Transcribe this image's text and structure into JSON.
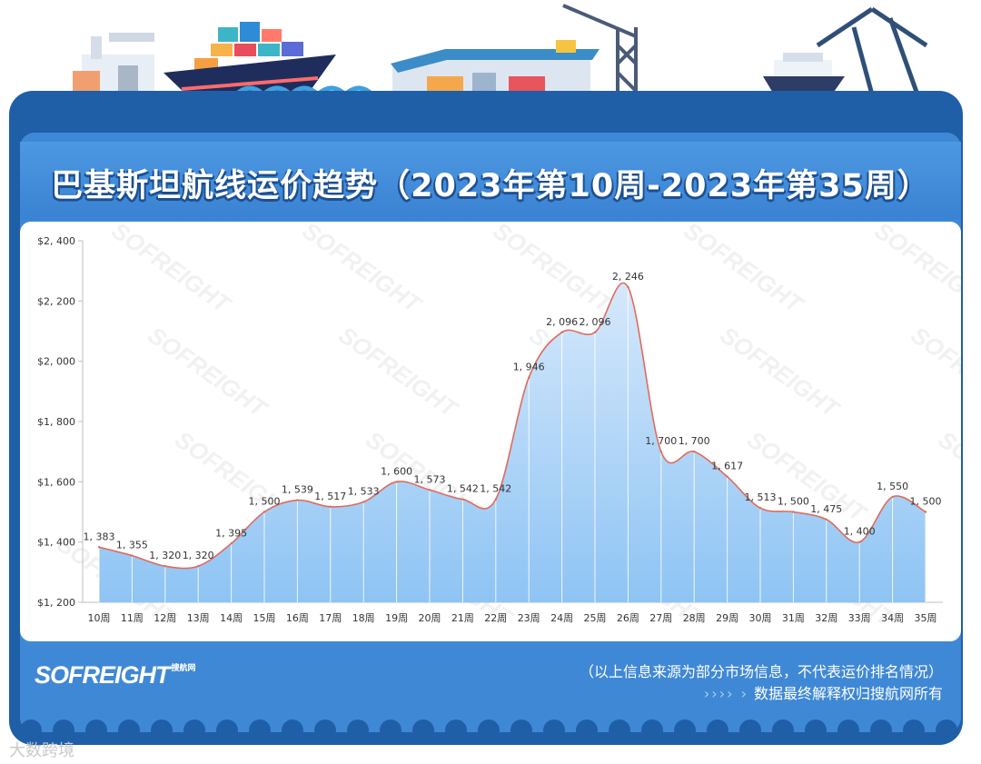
{
  "title": "巴基斯坦航线运价趋势（2023年第10周-2023年第35周）",
  "brand": "SOFREIGHT",
  "brand_sub": "搜航网",
  "watermark_text": "SOFREIGHT",
  "footer": {
    "note1": "（以上信息来源为部分市场信息，不代表运价排名情况）",
    "arrows": "›››› ›",
    "note2": "数据最终解释权归搜航网所有"
  },
  "corner_watermark": "大数跨境",
  "colors": {
    "frame": "#1f5fa8",
    "panel": "#3f88d6",
    "line": "#e06a5c",
    "area_top": "#d6e8fb",
    "area_bottom": "#8ec4f4",
    "axis_text": "#333333"
  },
  "chart_data": {
    "type": "area",
    "categories": [
      "10周",
      "11周",
      "12周",
      "13周",
      "14周",
      "15周",
      "16周",
      "17周",
      "18周",
      "19周",
      "20周",
      "21周",
      "22周",
      "23周",
      "24周",
      "25周",
      "26周",
      "27周",
      "28周",
      "29周",
      "30周",
      "31周",
      "32周",
      "33周",
      "34周",
      "35周"
    ],
    "values": [
      1383,
      1355,
      1320,
      1320,
      1395,
      1500,
      1539,
      1517,
      1533,
      1600,
      1573,
      1542,
      1542,
      1946,
      2096,
      2096,
      2246,
      1700,
      1700,
      1617,
      1513,
      1500,
      1475,
      1400,
      1550,
      1500
    ],
    "value_labels": [
      "1, 383",
      "1, 355",
      "1, 320",
      "1, 320",
      "1, 395",
      "1, 500",
      "1, 539",
      "1, 517",
      "1, 533",
      "1, 600",
      "1, 573",
      "1, 542",
      "1, 542",
      "1, 946",
      "2, 096",
      "2, 096",
      "2, 246",
      "1, 700",
      "1, 700",
      "1, 617",
      "1, 513",
      "1, 500",
      "1, 475",
      "1, 400",
      "1, 550",
      "1, 500"
    ],
    "yticks": [
      1200,
      1400,
      1600,
      1800,
      2000,
      2200,
      2400
    ],
    "ytick_labels": [
      "$1, 200",
      "$1, 400",
      "$1, 600",
      "$1, 800",
      "$2, 000",
      "$2, 200",
      "$2, 400"
    ],
    "ylim": [
      1200,
      2400
    ],
    "grid": "vertical drop lines",
    "title": "",
    "xlabel": "",
    "ylabel": ""
  }
}
